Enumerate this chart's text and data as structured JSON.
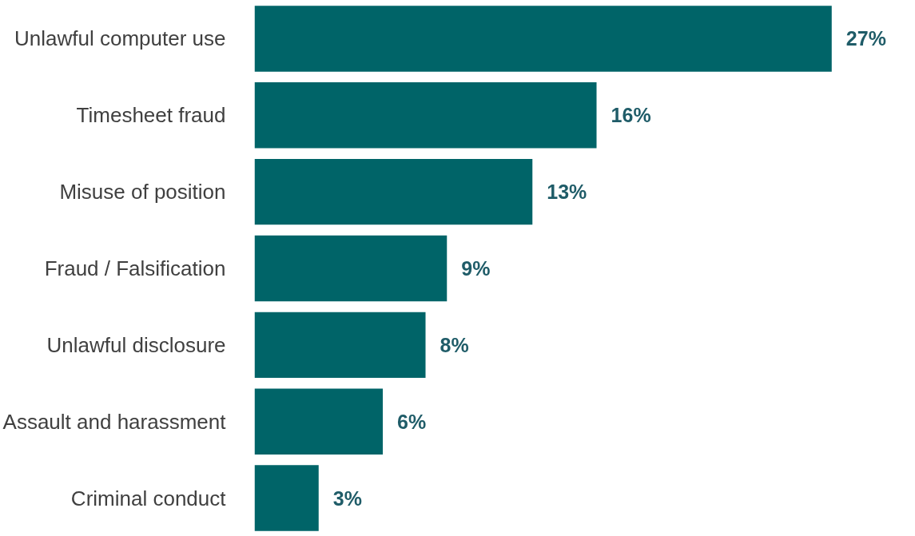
{
  "chart_data": {
    "type": "bar",
    "orientation": "horizontal",
    "categories": [
      "Unlawful computer use",
      "Timesheet fraud",
      "Misuse of position",
      "Fraud / Falsification",
      "Unlawful disclosure",
      "Assault and harassment",
      "Criminal conduct"
    ],
    "values": [
      27,
      16,
      13,
      9,
      8,
      6,
      3
    ],
    "value_labels": [
      "27%",
      "16%",
      "13%",
      "9%",
      "8%",
      "6%",
      "3%"
    ],
    "color": "#006468"
  }
}
